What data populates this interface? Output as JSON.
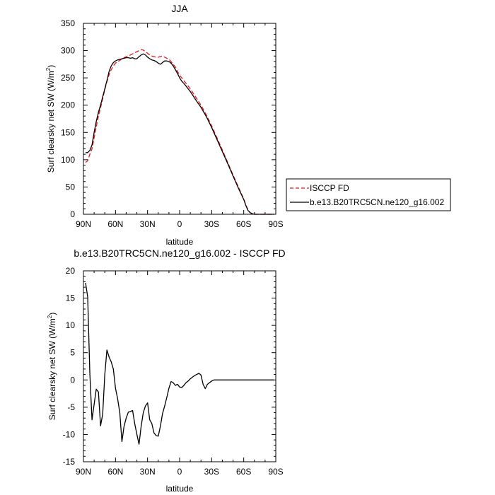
{
  "chart_data": [
    {
      "type": "line",
      "title": "JJA",
      "xlabel": "latitude",
      "ylabel": "Surf clearsky net SW (W/m",
      "ylabel_sup": "2",
      "ylabel_close": ")",
      "xlim": [
        90,
        -90
      ],
      "ylim": [
        0,
        350
      ],
      "x_ticks": [
        90,
        60,
        30,
        0,
        -30,
        -60,
        -90
      ],
      "x_tick_labels": [
        "90N",
        "60N",
        "30N",
        "0",
        "30S",
        "60S",
        "90S"
      ],
      "y_ticks": [
        0,
        50,
        100,
        150,
        200,
        250,
        300,
        350
      ],
      "y_tick_labels": [
        "0",
        "50",
        "100",
        "150",
        "200",
        "250",
        "300",
        "350"
      ],
      "legend": {
        "placement": "right",
        "entries": [
          {
            "label": "ISCCP FD",
            "color": "#e8141a",
            "dash": true
          },
          {
            "label": "b.e13.B20TRC5CN.ne120_g16.002",
            "color": "#000000",
            "dash": false
          }
        ]
      },
      "series": [
        {
          "name": "ISCCP FD",
          "color": "#e8141a",
          "dash": true,
          "x": [
            88,
            86,
            84,
            82,
            80,
            78,
            76,
            74,
            72,
            70,
            68,
            66,
            64,
            62,
            60,
            58,
            56,
            54,
            52,
            50,
            48,
            46,
            44,
            42,
            40,
            38,
            36,
            34,
            32,
            30,
            28,
            26,
            24,
            22,
            20,
            18,
            16,
            14,
            12,
            10,
            8,
            6,
            4,
            2,
            0,
            -2,
            -4,
            -6,
            -8,
            -10,
            -15,
            -20,
            -25,
            -30,
            -35,
            -40,
            -45,
            -50,
            -55,
            -60,
            -62,
            -64,
            -66,
            -68,
            -70,
            -75,
            -80,
            -85,
            -88
          ],
          "values": [
            95,
            98,
            110,
            120,
            140,
            160,
            180,
            195,
            212,
            228,
            243,
            256,
            265,
            272,
            277,
            280,
            282,
            285,
            287,
            289,
            290,
            292,
            294,
            296,
            298,
            300,
            302,
            301,
            298,
            295,
            292,
            290,
            289,
            288,
            288,
            289,
            290,
            288,
            286,
            284,
            280,
            275,
            270,
            262,
            255,
            250,
            245,
            240,
            235,
            230,
            215,
            200,
            182,
            162,
            140,
            118,
            95,
            72,
            50,
            28,
            17,
            8,
            3,
            1,
            0,
            0,
            0,
            0,
            0
          ]
        },
        {
          "name": "b.e13.B20TRC5CN.ne120_g16.002",
          "color": "#000000",
          "dash": false,
          "x": [
            88,
            86,
            84,
            82,
            80,
            78,
            76,
            74,
            72,
            70,
            68,
            66,
            64,
            62,
            60,
            58,
            56,
            54,
            52,
            50,
            48,
            46,
            44,
            42,
            40,
            38,
            36,
            34,
            32,
            30,
            28,
            26,
            24,
            22,
            20,
            18,
            16,
            14,
            12,
            10,
            8,
            6,
            4,
            2,
            0,
            -2,
            -4,
            -6,
            -8,
            -10,
            -15,
            -20,
            -25,
            -30,
            -35,
            -40,
            -45,
            -50,
            -55,
            -60,
            -62,
            -64,
            -66,
            -68,
            -70,
            -75,
            -80,
            -85,
            -88
          ],
          "values": [
            113,
            113,
            117,
            127,
            150,
            170,
            187,
            200,
            215,
            230,
            245,
            262,
            272,
            278,
            281,
            283,
            284,
            285,
            286,
            287,
            287,
            286,
            287,
            285,
            285,
            289,
            292,
            294,
            292,
            288,
            285,
            283,
            282,
            280,
            277,
            275,
            278,
            281,
            281,
            280,
            277,
            272,
            265,
            258,
            250,
            244,
            240,
            235,
            230,
            225,
            210,
            196,
            179,
            159,
            137,
            115,
            93,
            70,
            48,
            27,
            16,
            7,
            3,
            1,
            0,
            0,
            0,
            0,
            0
          ]
        }
      ]
    },
    {
      "type": "line",
      "title": "b.e13.B20TRC5CN.ne120_g16.002 - ISCCP FD",
      "xlabel": "latitude",
      "ylabel": "Surf clearsky net SW (W/m",
      "ylabel_sup": "2",
      "ylabel_close": ")",
      "xlim": [
        90,
        -90
      ],
      "ylim": [
        -15,
        20
      ],
      "x_ticks": [
        90,
        60,
        30,
        0,
        -30,
        -60,
        -90
      ],
      "x_tick_labels": [
        "90N",
        "60N",
        "30N",
        "0",
        "30S",
        "60S",
        "90S"
      ],
      "y_ticks": [
        -15,
        -10,
        -5,
        0,
        5,
        10,
        15,
        20
      ],
      "y_tick_labels": [
        "-15",
        "-10",
        "-5",
        "0",
        "5",
        "10",
        "15",
        "20"
      ],
      "series": [
        {
          "name": "",
          "color": "#000000",
          "dash": false,
          "x": [
            88,
            86,
            84,
            82,
            80,
            78,
            76,
            74,
            72,
            70,
            68,
            66,
            64,
            62,
            60,
            58,
            56,
            54,
            52,
            50,
            48,
            46,
            44,
            42,
            40,
            38,
            36,
            34,
            32,
            30,
            28,
            26,
            24,
            22,
            20,
            18,
            16,
            14,
            12,
            10,
            8,
            6,
            4,
            2,
            0,
            -2,
            -4,
            -6,
            -8,
            -10,
            -12,
            -14,
            -16,
            -18,
            -20,
            -22,
            -24,
            -26,
            -28,
            -30,
            -32,
            -34,
            -36,
            -38,
            -40,
            -42,
            -44,
            -46,
            -48,
            -50,
            -52,
            -54,
            -56,
            -58,
            -60,
            -62,
            -64,
            -66,
            -68,
            -70,
            -75,
            -80,
            -85,
            -88
          ],
          "values": [
            17.8,
            15.2,
            1.0,
            -7.3,
            -4.5,
            -1.7,
            -2.2,
            -8.4,
            -6.3,
            1.0,
            5.5,
            4.2,
            3.3,
            2.0,
            -1.5,
            -3.5,
            -6.0,
            -11.3,
            -8.5,
            -7.0,
            -5.9,
            -5.8,
            -5.6,
            -8.0,
            -10.0,
            -11.8,
            -8.5,
            -6.0,
            -4.8,
            -4.2,
            -7.3,
            -8.0,
            -9.7,
            -10.2,
            -10.3,
            -8.5,
            -6.2,
            -4.8,
            -3.2,
            -1.5,
            -0.3,
            -0.5,
            -1.0,
            -0.8,
            -1.3,
            -1.4,
            -1.0,
            -0.5,
            -0.2,
            0.2,
            0.5,
            0.8,
            1.0,
            1.2,
            0.9,
            -0.8,
            -1.6,
            -0.8,
            -0.5,
            -0.2,
            0.0,
            0.0,
            0.0,
            0.0,
            0.0,
            0.0,
            0.0,
            0.0,
            0.0,
            0.0,
            0.0,
            0.0,
            0.0,
            0.0,
            0.0,
            0.0,
            0.0,
            0.0,
            0.0,
            0.0,
            0.0,
            0.0,
            0.0,
            0.0
          ]
        }
      ]
    }
  ]
}
